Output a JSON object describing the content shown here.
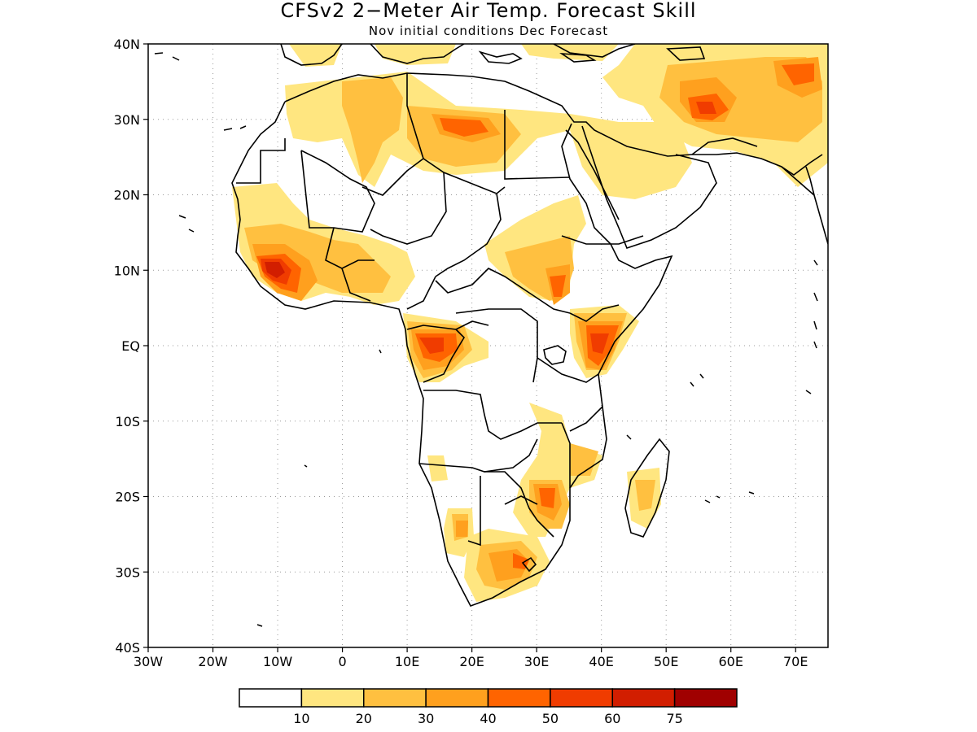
{
  "title": "CFSv2 2−Meter Air Temp. Forecast Skill",
  "subtitle": "Nov initial conditions  Dec Forecast",
  "map": {
    "lon_range": [
      -30,
      75
    ],
    "lat_range": [
      -40,
      40
    ],
    "lat_labels": [
      "40N",
      "30N",
      "20N",
      "10N",
      "EQ",
      "10S",
      "20S",
      "30S",
      "40S"
    ],
    "lon_labels": [
      "30W",
      "20W",
      "10W",
      "0",
      "10E",
      "20E",
      "30E",
      "40E",
      "50E",
      "60E",
      "70E"
    ],
    "gridlines": "dotted",
    "coastline_color": "#000000"
  },
  "colorbar": {
    "labels": [
      "10",
      "20",
      "30",
      "40",
      "50",
      "60",
      "75"
    ],
    "colors": [
      "#ffffff",
      "#ffe680",
      "#ffc040",
      "#ffa01e",
      "#ff6400",
      "#f03c00",
      "#d21e00",
      "#a00000"
    ]
  }
}
